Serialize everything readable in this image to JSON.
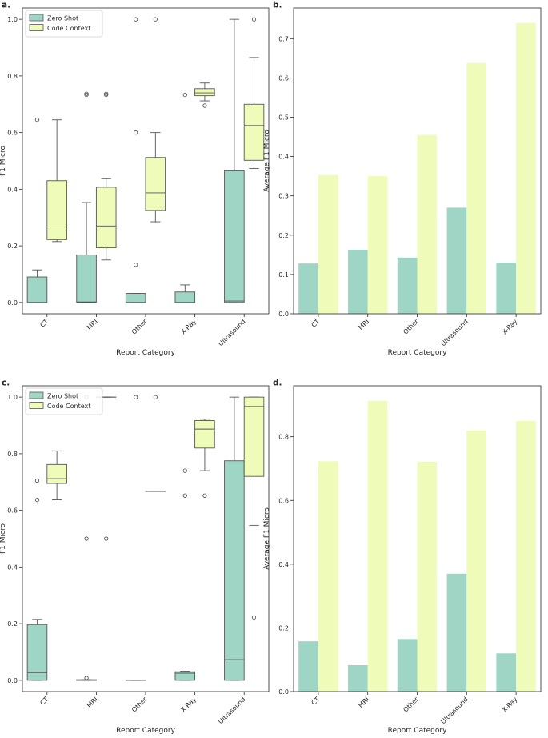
{
  "colors": {
    "zero_shot": "#9fd5c4",
    "code_context": "#eefbb9",
    "line": "#555555"
  },
  "chart_data": [
    {
      "panel": "a.",
      "type": "box",
      "xlabel": "Report Category",
      "ylabel": "F1 Micro",
      "ylim": [
        -0.04,
        1.04
      ],
      "yticks": [
        0.0,
        0.2,
        0.4,
        0.6,
        0.8,
        1.0
      ],
      "ytick_labels": [
        "0.0",
        "0.2",
        "0.4",
        "0.6",
        "0.8",
        "1.0"
      ],
      "categories": [
        "CT",
        "MRI",
        "Other",
        "X-Ray",
        "Ultrasound"
      ],
      "legend": {
        "position": "top-left",
        "entries": [
          "Zero Shot",
          "Code Context"
        ]
      },
      "series": [
        {
          "name": "Zero Shot",
          "boxes": [
            {
              "q1": 0.0,
              "med": 0.0,
              "q3": 0.09,
              "lo": 0.0,
              "hi": 0.115,
              "fliers": [
                0.645
              ]
            },
            {
              "q1": 0.0,
              "med": 0.002,
              "q3": 0.168,
              "lo": 0.0,
              "hi": 0.353,
              "fliers": [
                0.733,
                0.737
              ]
            },
            {
              "q1": 0.0,
              "med": 0.0,
              "q3": 0.032,
              "lo": 0.0,
              "hi": 0.032,
              "fliers": [
                0.133,
                0.6,
                1.0
              ]
            },
            {
              "q1": 0.0,
              "med": 0.0,
              "q3": 0.037,
              "lo": 0.0,
              "hi": 0.062,
              "fliers": [
                0.733
              ]
            },
            {
              "q1": 0.0,
              "med": 0.005,
              "q3": 0.465,
              "lo": 0.0,
              "hi": 1.0,
              "fliers": []
            }
          ]
        },
        {
          "name": "Code Context",
          "boxes": [
            {
              "q1": 0.222,
              "med": 0.267,
              "q3": 0.43,
              "lo": 0.215,
              "hi": 0.645,
              "fliers": []
            },
            {
              "q1": 0.193,
              "med": 0.27,
              "q3": 0.407,
              "lo": 0.15,
              "hi": 0.437,
              "fliers": [
                0.733,
                0.737
              ]
            },
            {
              "q1": 0.325,
              "med": 0.387,
              "q3": 0.512,
              "lo": 0.285,
              "hi": 0.6,
              "fliers": [
                1.0
              ]
            },
            {
              "q1": 0.73,
              "med": 0.74,
              "q3": 0.755,
              "lo": 0.712,
              "hi": 0.775,
              "fliers": [
                0.695
              ]
            },
            {
              "q1": 0.502,
              "med": 0.625,
              "q3": 0.7,
              "lo": 0.473,
              "hi": 0.865,
              "fliers": [
                1.0
              ]
            }
          ]
        }
      ]
    },
    {
      "panel": "b.",
      "type": "bar",
      "xlabel": "Report Category",
      "ylabel": "Average F1 Micro",
      "ylim": [
        0,
        0.778
      ],
      "yticks": [
        0.0,
        0.1,
        0.2,
        0.3,
        0.4,
        0.5,
        0.6,
        0.7
      ],
      "ytick_labels": [
        "0.0",
        "0.1",
        "0.2",
        "0.3",
        "0.4",
        "0.5",
        "0.6",
        "0.7"
      ],
      "categories": [
        "CT",
        "MRI",
        "Other",
        "Ultrasound",
        "X-Ray"
      ],
      "series": [
        {
          "name": "Zero Shot",
          "values": [
            0.128,
            0.163,
            0.143,
            0.27,
            0.13
          ]
        },
        {
          "name": "Code Context",
          "values": [
            0.353,
            0.35,
            0.455,
            0.638,
            0.74
          ]
        }
      ]
    },
    {
      "panel": "c.",
      "type": "box",
      "xlabel": "Report Category",
      "ylabel": "F1 Micro",
      "ylim": [
        -0.04,
        1.04
      ],
      "yticks": [
        0.0,
        0.2,
        0.4,
        0.6,
        0.8,
        1.0
      ],
      "ytick_labels": [
        "0.0",
        "0.2",
        "0.4",
        "0.6",
        "0.8",
        "1.0"
      ],
      "categories": [
        "CT",
        "MRI",
        "Other",
        "X-Ray",
        "Ultrasound"
      ],
      "legend": {
        "position": "top-left",
        "entries": [
          "Zero Shot",
          "Code Context"
        ]
      },
      "series": [
        {
          "name": "Zero Shot",
          "boxes": [
            {
              "q1": 0.0,
              "med": 0.027,
              "q3": 0.197,
              "lo": 0.0,
              "hi": 0.215,
              "fliers": [
                0.637,
                0.705
              ]
            },
            {
              "q1": 0.0,
              "med": 0.0,
              "q3": 0.002,
              "lo": 0.0,
              "hi": 0.002,
              "fliers": [
                0.008,
                0.5,
                1.0
              ]
            },
            {
              "q1": 0.0,
              "med": 0.0,
              "q3": 0.0,
              "lo": 0.0,
              "hi": 0.0,
              "fliers": [
                1.0
              ]
            },
            {
              "q1": 0.0,
              "med": 0.025,
              "q3": 0.03,
              "lo": 0.0,
              "hi": 0.032,
              "fliers": [
                0.652,
                0.74
              ]
            },
            {
              "q1": 0.0,
              "med": 0.073,
              "q3": 0.775,
              "lo": 0.0,
              "hi": 1.0,
              "fliers": []
            }
          ]
        },
        {
          "name": "Code Context",
          "boxes": [
            {
              "q1": 0.695,
              "med": 0.712,
              "q3": 0.762,
              "lo": 0.637,
              "hi": 0.81,
              "fliers": []
            },
            {
              "q1": 1.0,
              "med": 1.0,
              "q3": 1.0,
              "lo": 1.0,
              "hi": 1.0,
              "fliers": [
                0.5
              ]
            },
            {
              "q1": 0.667,
              "med": 0.667,
              "q3": 0.667,
              "lo": 0.667,
              "hi": 0.667,
              "fliers": [
                1.0
              ]
            },
            {
              "q1": 0.82,
              "med": 0.887,
              "q3": 0.917,
              "lo": 0.74,
              "hi": 0.922,
              "fliers": [
                0.652
              ]
            },
            {
              "q1": 0.72,
              "med": 0.967,
              "q3": 1.0,
              "lo": 0.547,
              "hi": 1.0,
              "fliers": [
                0.222
              ]
            }
          ]
        }
      ]
    },
    {
      "panel": "d.",
      "type": "bar",
      "xlabel": "Report Category",
      "ylabel": "Average F1 Micro",
      "ylim": [
        0,
        0.96
      ],
      "yticks": [
        0.0,
        0.2,
        0.4,
        0.6,
        0.8
      ],
      "ytick_labels": [
        "0.0",
        "0.2",
        "0.4",
        "0.6",
        "0.8"
      ],
      "categories": [
        "CT",
        "MRI",
        "Other",
        "Ultrasound",
        "X-Ray"
      ],
      "series": [
        {
          "name": "Zero Shot",
          "values": [
            0.158,
            0.083,
            0.165,
            0.37,
            0.12
          ]
        },
        {
          "name": "Code Context",
          "values": [
            0.723,
            0.913,
            0.722,
            0.82,
            0.85
          ]
        }
      ]
    }
  ]
}
